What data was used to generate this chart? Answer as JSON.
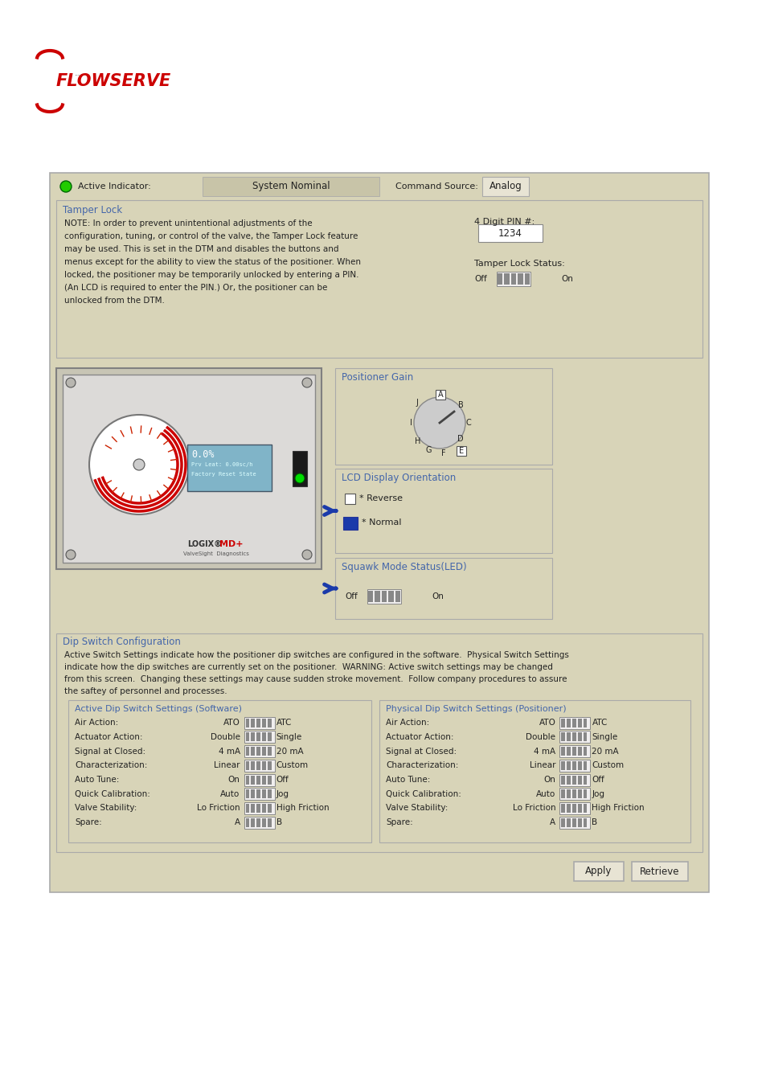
{
  "page_bg": "#ffffff",
  "panel_bg": "#d8d4b8",
  "panel_border": "#aaaaaa",
  "white": "#ffffff",
  "blue_title": "#4466aa",
  "dark_blue": "#1a3aaa",
  "text_color": "#222222",
  "red_color": "#cc0000",
  "green_color": "#22cc00",
  "gray_light": "#e8e4d4",
  "gray_mid": "#c8c4a8",
  "gray_dark": "#888888",
  "device_bg": "#d0cec0",
  "device_body": "#e0dedd",
  "lcd_blue": "#6aaccb",
  "led_green": "#00dd00",
  "switch_white": "#f0eeee",
  "flowserve_red": "#cc0000",
  "active_indicator_label": "Active Indicator:",
  "system_nominal": "System Nominal",
  "command_source_label": "Command Source:",
  "analog_label": "Analog",
  "tamper_lock_title": "Tamper Lock",
  "tamper_lock_note_lines": [
    "NOTE: In order to prevent unintentional adjustments of the",
    "configuration, tuning, or control of the valve, the Tamper Lock feature",
    "may be used. This is set in the DTM and disables the buttons and",
    "menus except for the ability to view the status of the positioner. When",
    "locked, the positioner may be temporarily unlocked by entering a PIN.",
    "(An LCD is required to enter the PIN.) Or, the positioner can be",
    "unlocked from the DTM."
  ],
  "pin_label": "4 Digit PIN #:",
  "pin_value": "1234",
  "tamper_lock_status": "Tamper Lock Status:",
  "off_label": "Off",
  "on_label": "On",
  "positioner_gain_title": "Positioner Gain",
  "lcd_orientation_title": "LCD Display Orientation",
  "reverse_label": "* Reverse",
  "normal_label": "* Normal",
  "squawk_title": "Squawk Mode Status(LED)",
  "dip_switch_title": "Dip Switch Configuration",
  "dip_switch_note_lines": [
    "Active Switch Settings indicate how the positioner dip switches are configured in the software.  Physical Switch Settings",
    "indicate how the dip switches are currently set on the positioner.  WARNING: Active switch settings may be changed",
    "from this screen.  Changing these settings may cause sudden stroke movement.  Follow company procedures to assure",
    "the saftey of personnel and processes."
  ],
  "active_dip_title": "Active Dip Switch Settings (Software)",
  "physical_dip_title": "Physical Dip Switch Settings (Positioner)",
  "dip_rows": [
    {
      "label": "Air Action:",
      "left": "ATO",
      "right": "ATC"
    },
    {
      "label": "Actuator Action:",
      "left": "Double",
      "right": "Single"
    },
    {
      "label": "Signal at Closed:",
      "left": "4 mA",
      "right": "20 mA"
    },
    {
      "label": "Characterization:",
      "left": "Linear",
      "right": "Custom"
    },
    {
      "label": "Auto Tune:",
      "left": "On",
      "right": "Off"
    },
    {
      "label": "Quick Calibration:",
      "left": "Auto",
      "right": "Jog"
    },
    {
      "label": "Valve Stability:",
      "left": "Lo Friction",
      "right": "High Friction"
    },
    {
      "label": "Spare:",
      "left": "A",
      "right": "B"
    }
  ],
  "apply_btn": "Apply",
  "retrieve_btn": "Retrieve"
}
